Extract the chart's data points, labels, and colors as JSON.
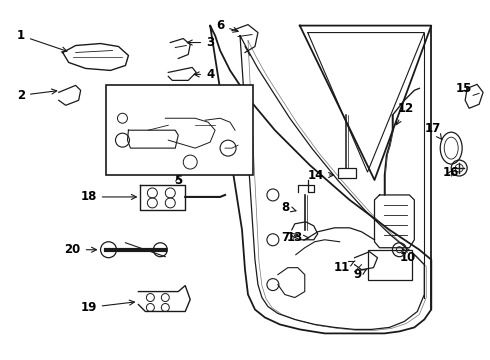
{
  "bg_color": "#ffffff",
  "fig_width": 4.9,
  "fig_height": 3.6,
  "dpi": 100,
  "line_color": "#1a1a1a",
  "text_color": "#000000"
}
